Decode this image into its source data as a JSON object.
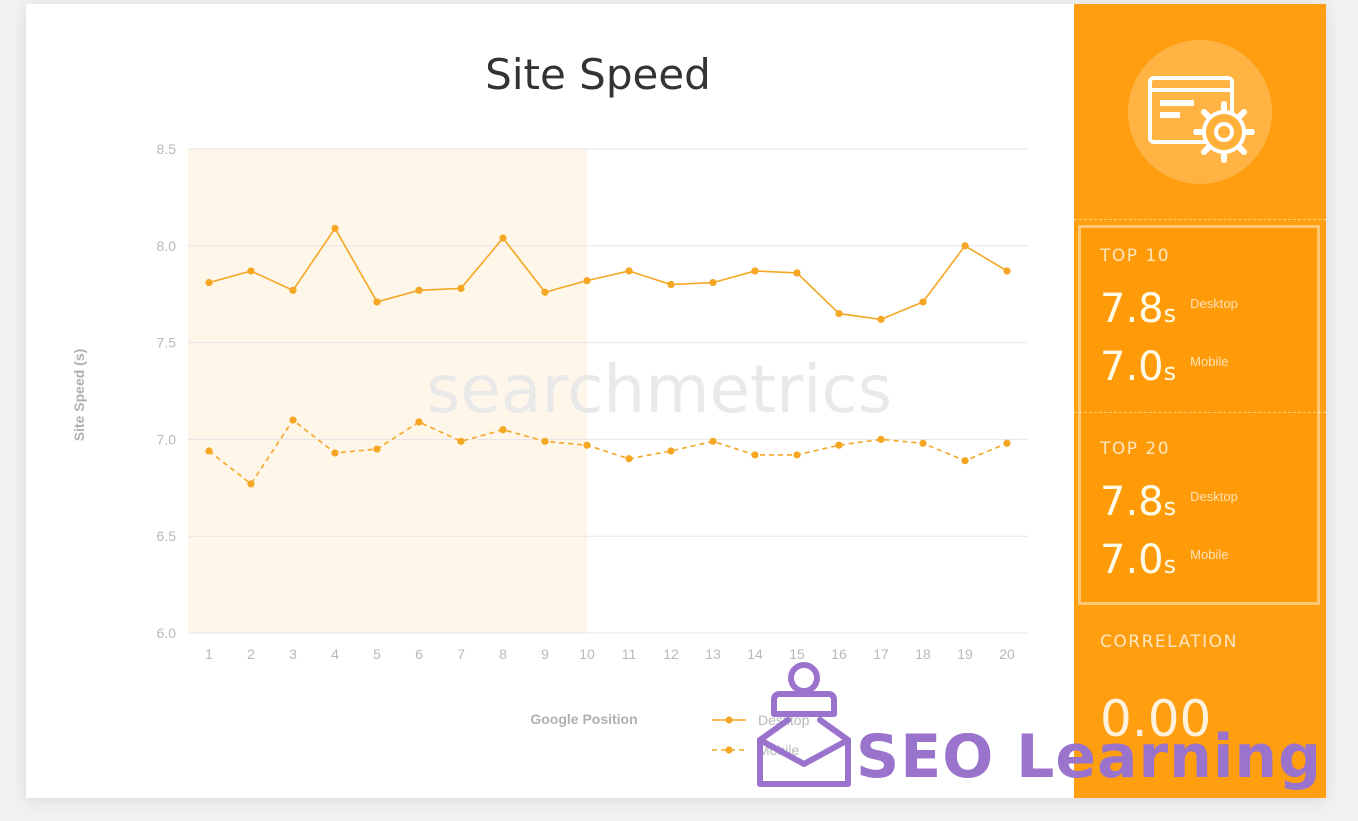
{
  "chart_data": {
    "type": "line",
    "title": "Site Speed",
    "xlabel": "Google Position",
    "ylabel": "Site Speed (s)",
    "categories": [
      "1",
      "2",
      "3",
      "4",
      "5",
      "6",
      "7",
      "8",
      "9",
      "10",
      "11",
      "12",
      "13",
      "14",
      "15",
      "16",
      "17",
      "18",
      "19",
      "20"
    ],
    "y_ticks": [
      "6.0",
      "6.5",
      "7.0",
      "7.5",
      "8.0",
      "8.5"
    ],
    "ylim": [
      6.0,
      8.5
    ],
    "highlight_range": [
      "1",
      "10"
    ],
    "grid": true,
    "legend_position": "bottom",
    "series": [
      {
        "name": "Desktop",
        "style": "solid",
        "color": "#f5a623",
        "values": [
          7.81,
          7.87,
          7.77,
          8.09,
          7.71,
          7.77,
          7.78,
          8.04,
          7.76,
          7.82,
          7.87,
          7.8,
          7.81,
          7.87,
          7.86,
          7.65,
          7.62,
          7.71,
          8.0,
          7.87
        ]
      },
      {
        "name": "Mobile",
        "style": "dashed",
        "color": "#f5a623",
        "values": [
          6.94,
          6.77,
          7.1,
          6.93,
          6.95,
          7.09,
          6.99,
          7.05,
          6.99,
          6.97,
          6.9,
          6.94,
          6.99,
          6.92,
          6.92,
          6.97,
          7.0,
          6.98,
          6.89,
          6.98
        ]
      }
    ]
  },
  "watermark": "searchmetrics",
  "side_panel": {
    "top10": {
      "label": "TOP 10",
      "desktop_value": "7.8",
      "desktop_unit": "s",
      "desktop_label": "Desktop",
      "mobile_value": "7.0",
      "mobile_unit": "s",
      "mobile_label": "Mobile"
    },
    "top20": {
      "label": "TOP 20",
      "desktop_value": "7.8",
      "desktop_unit": "s",
      "desktop_label": "Desktop",
      "mobile_value": "7.0",
      "mobile_unit": "s",
      "mobile_label": "Mobile"
    },
    "correlation": {
      "label": "CORRELATION",
      "value": "0.00"
    },
    "icon": "browser-settings-icon"
  },
  "brand_overlay": {
    "text": "SEO Learning",
    "icon": "person-envelope-icon"
  },
  "colors": {
    "accent": "#ff9e0f",
    "line": "#f5a623",
    "highlight": "#fff6ea",
    "brand": "#9a73cc"
  }
}
